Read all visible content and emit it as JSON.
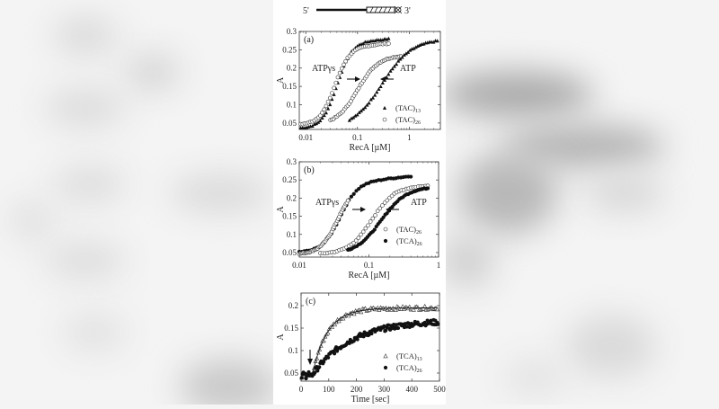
{
  "construct": {
    "left_label": "5'",
    "right_label": "3'"
  },
  "chart_data": [
    {
      "panel": "(a)",
      "type": "scatter",
      "xscale": "log",
      "xlabel": "RecA [µM]",
      "ylabel": "A",
      "xticks": [
        "0.01",
        "0.1",
        "1"
      ],
      "yticks": [
        "0.05",
        "0.1",
        "0.15",
        "0.2",
        "0.25",
        "0.3"
      ],
      "xlim": [
        0.0075,
        4
      ],
      "ylim": [
        0.03,
        0.3
      ],
      "annotations": [
        "ATPγs",
        "ATP",
        "arrow-right at 0.1",
        "arrow-left at 0.3"
      ],
      "legend": [
        {
          "label": "(TAC)",
          "sub": "13",
          "marker": "filled-triangle"
        },
        {
          "label": "(TAC)",
          "sub": "26",
          "marker": "open-circle"
        }
      ],
      "series": [
        {
          "name": "(TAC)13 ATPγs",
          "marker": "filled-triangle",
          "x_range": [
            0.008,
            0.4
          ],
          "base": 0.035,
          "top": 0.27,
          "mid": 0.04,
          "slope": 7,
          "drift": 0.01
        },
        {
          "name": "(TAC)26 ATPγs",
          "marker": "open-circle",
          "x_range": [
            0.008,
            0.4
          ],
          "base": 0.045,
          "top": 0.255,
          "mid": 0.036,
          "slope": 7,
          "drift": 0.012
        },
        {
          "name": "(TAC)26 ATP",
          "marker": "open-circle",
          "x_range": [
            0.03,
            0.7
          ],
          "base": 0.045,
          "top": 0.235,
          "mid": 0.1,
          "slope": 5,
          "drift": 0.0
        },
        {
          "name": "(TAC)13 ATP",
          "marker": "filled-triangle",
          "x_range": [
            0.07,
            3.5
          ],
          "base": 0.035,
          "top": 0.28,
          "mid": 0.3,
          "slope": 3.5,
          "drift": 0.0
        }
      ]
    },
    {
      "panel": "(b)",
      "type": "scatter",
      "xscale": "log",
      "xlabel": "RecA [µM]",
      "ylabel": "A",
      "xticks": [
        "0.01",
        "0.1",
        "1"
      ],
      "yticks": [
        "0.05",
        "0.1",
        "0.15",
        "0.2",
        "0.25",
        "0.3"
      ],
      "xlim": [
        0.01,
        1
      ],
      "ylim": [
        0.04,
        0.3
      ],
      "annotations": [
        "ATPγs",
        "ATP",
        "arrow-right at 0.1",
        "arrow-left at 0.2"
      ],
      "legend": [
        {
          "label": "(TAC)",
          "sub": "26",
          "marker": "open-circle"
        },
        {
          "label": "(TCA)",
          "sub": "26",
          "marker": "filled-circle"
        }
      ],
      "series": [
        {
          "name": "(TCA)26 ATPγs",
          "marker": "filled-circle",
          "x_range": [
            0.01,
            0.4
          ],
          "base": 0.05,
          "top": 0.24,
          "mid": 0.038,
          "slope": 8,
          "drift": 0.02
        },
        {
          "name": "(TAC)26 ATPγs",
          "marker": "open-circle",
          "x_range": [
            0.01,
            0.05
          ],
          "base": 0.045,
          "top": 0.24,
          "mid": 0.036,
          "slope": 8,
          "drift": 0.0
        },
        {
          "name": "(TAC)26 ATP",
          "marker": "open-circle",
          "x_range": [
            0.02,
            0.7
          ],
          "base": 0.045,
          "top": 0.235,
          "mid": 0.11,
          "slope": 6,
          "drift": 0.0
        },
        {
          "name": "(TCA)26 ATP",
          "marker": "filled-circle",
          "x_range": [
            0.05,
            0.7
          ],
          "base": 0.045,
          "top": 0.232,
          "mid": 0.15,
          "slope": 5.5,
          "drift": 0.0
        }
      ]
    },
    {
      "panel": "(c)",
      "type": "scatter",
      "xscale": "linear",
      "xlabel": "Time [sec]",
      "ylabel": "A",
      "xticks": [
        "0",
        "100",
        "200",
        "300",
        "400",
        "500"
      ],
      "yticks": [
        "0.05",
        "0.1",
        "0.15",
        "0.2"
      ],
      "xlim": [
        0,
        500
      ],
      "ylim": [
        0.03,
        0.23
      ],
      "annotations": [
        "down-arrow at t≈40 s"
      ],
      "legend": [
        {
          "label": "(TCA)",
          "sub": "13",
          "marker": "open-triangle"
        },
        {
          "label": "(TCA)",
          "sub": "26",
          "marker": "filled-circle"
        }
      ],
      "series": [
        {
          "name": "(TCA)13",
          "marker": "open-triangle",
          "t_start": 40,
          "base": 0.045,
          "top": 0.195,
          "tau": 55,
          "noise": 0.004
        },
        {
          "name": "(TCA)26",
          "marker": "filled-circle",
          "t_start": 40,
          "base": 0.045,
          "top": 0.168,
          "tau": 140,
          "noise": 0.006
        }
      ],
      "fit_line": {
        "series": "(TCA)13",
        "style": "solid"
      }
    }
  ]
}
